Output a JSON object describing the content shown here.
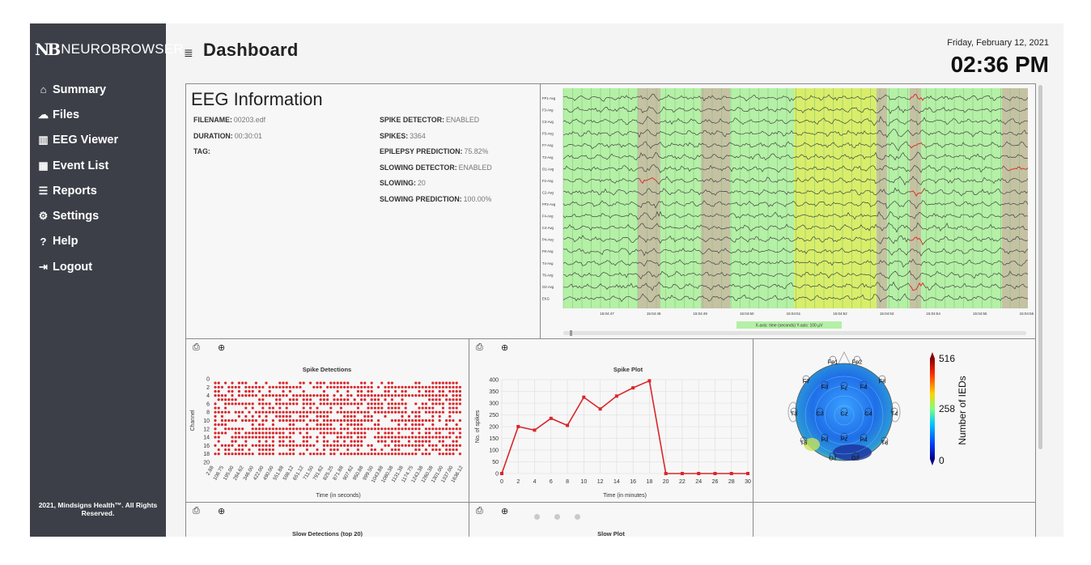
{
  "app": {
    "logo_mark": "NB",
    "logo_text": "NEUROBROWSER"
  },
  "sidebar": {
    "items": [
      {
        "label": "Summary",
        "icon": "home-icon",
        "glyph": "⌂"
      },
      {
        "label": "Files",
        "icon": "cloud-icon",
        "glyph": "☁"
      },
      {
        "label": "EEG Viewer",
        "icon": "bar-chart-icon",
        "glyph": "▥"
      },
      {
        "label": "Event List",
        "icon": "calendar-icon",
        "glyph": "▦"
      },
      {
        "label": "Reports",
        "icon": "list-icon",
        "glyph": "☰"
      },
      {
        "label": "Settings",
        "icon": "gear-icon",
        "glyph": "⚙"
      },
      {
        "label": "Help",
        "icon": "help-icon",
        "glyph": "?"
      },
      {
        "label": "Logout",
        "icon": "logout-icon",
        "glyph": "⇥"
      }
    ],
    "footer": "2021, Mindsigns Health™. All Rights Reserved."
  },
  "header": {
    "menu_glyph": "≣",
    "title": "Dashboard",
    "date": "Friday, February 12, 2021",
    "time": "02:36 PM"
  },
  "eeg_info": {
    "title": "EEG Information",
    "left": [
      {
        "label": "FILENAME:",
        "value": "00203.edf"
      },
      {
        "label": "DURATION:",
        "value": "00:30:01"
      },
      {
        "label": "TAG:",
        "value": ""
      }
    ],
    "right": [
      {
        "label": "SPIKE DETECTOR:",
        "value": "ENABLED"
      },
      {
        "label": "SPIKES:",
        "value": "3364"
      },
      {
        "label": "EPILEPSY PREDICTION:",
        "value": "75.82%"
      },
      {
        "label": "SLOWING DETECTOR:",
        "value": "ENABLED"
      },
      {
        "label": "SLOWING:",
        "value": "20"
      },
      {
        "label": "SLOWING PREDICTION:",
        "value": "100.00%"
      }
    ]
  },
  "eeg_viewer": {
    "channels": [
      "FP1-Avg",
      "F3-Avg",
      "C3-Avg",
      "P3-Avg",
      "F7-Avg",
      "T3-Avg",
      "O1-Avg",
      "F2-Avg",
      "C2-Avg",
      "FP2-Avg",
      "F4-Avg",
      "C4-Avg",
      "P4-Avg",
      "F8-Avg",
      "T4-Avg",
      "T6-Avg",
      "O2-Avg",
      "EKG"
    ],
    "time_ticks": [
      "15:04:47",
      "15:04:48",
      "15:04:49",
      "15:04:50",
      "15:04:51",
      "15:04:52",
      "15:04:53",
      "15:04:54",
      "15:04:55",
      "15:04:56"
    ],
    "axis_caption": "X-axis: time (seconds) Y-axis: 100 µV",
    "colors": {
      "background": "#b4f0a6",
      "spike_band": "#c9b6a2",
      "slow_band": "#d8ee6a",
      "trace": "#444444",
      "spike_trace": "#e0302a"
    }
  },
  "chart_data": [
    {
      "type": "scatter",
      "title": "Spike Detections",
      "xlabel": "Time (in seconds)",
      "ylabel": "Channel",
      "ylim": [
        0,
        20
      ],
      "y_ticks": [
        "0",
        "2",
        "4",
        "6",
        "8",
        "10",
        "12",
        "14",
        "16",
        "18",
        "20"
      ],
      "x_ticks": [
        "2.88",
        "108.75",
        "195.00",
        "284.62",
        "346.00",
        "422.00",
        "490.00",
        "551.88",
        "598.12",
        "651.12",
        "711.50",
        "791.62",
        "825.25",
        "871.88",
        "907.62",
        "950.88",
        "999.50",
        "1043.88",
        "1080.38",
        "1131.38",
        "1174.75",
        "1243.38",
        "1260.38",
        "1301.00",
        "1337.00",
        "1636.12"
      ],
      "point_color": "#d9262a",
      "channels_with_spikes": [
        1,
        2,
        3,
        4,
        5,
        6,
        7,
        8,
        9,
        10,
        11,
        12,
        13,
        14,
        15,
        16,
        17,
        18
      ]
    },
    {
      "type": "line",
      "title": "Spike Plot",
      "xlabel": "Time (in minutes)",
      "ylabel": "No. of spikes",
      "x": [
        0,
        2,
        4,
        6,
        8,
        10,
        12,
        14,
        16,
        18,
        20,
        22,
        24,
        26,
        28,
        30
      ],
      "values": [
        0,
        200,
        185,
        235,
        205,
        325,
        275,
        330,
        365,
        395,
        0,
        0,
        0,
        0,
        0,
        0
      ],
      "ylim": [
        0,
        400
      ],
      "y_ticks": [
        "0",
        "50",
        "100",
        "150",
        "200",
        "250",
        "300",
        "350",
        "400"
      ],
      "color": "#d9262a"
    },
    {
      "type": "heatmap",
      "title": "",
      "colorbar_label": "Number of IEDs",
      "colorbar_ticks": [
        "516",
        "258",
        "0"
      ],
      "electrodes": [
        "Fp1",
        "Fp2",
        "F7",
        "F3",
        "Fz",
        "F4",
        "F8",
        "T3",
        "C3",
        "Cz",
        "C4",
        "T4",
        "T5",
        "P3",
        "Pz",
        "P4",
        "T6",
        "O1",
        "O2"
      ]
    }
  ],
  "bottom_panels": {
    "slow_detections_title": "Slow Detections (top 20)",
    "slow_plot_title": "Slow Plot"
  },
  "toolbar": {
    "print_glyph": "⎙",
    "zoom_glyph": "⊕"
  }
}
